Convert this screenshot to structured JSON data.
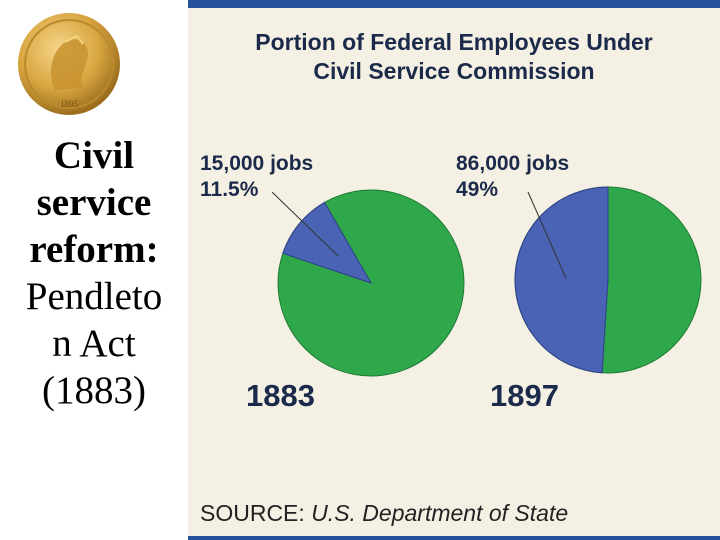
{
  "slide": {
    "heading_line1": "Civil",
    "heading_line2": "service",
    "heading_line3": "reform:",
    "body_line1": "Pendleto",
    "body_line2": "n Act",
    "body_line3": "(1883)"
  },
  "coin": {
    "icon": "gold-coin-icon",
    "year": "1895",
    "color": "#d9a640"
  },
  "chart_data": {
    "type": "pie",
    "title": "Portion of Federal Employees Under Civil Service Commission",
    "title_line1": "Portion of Federal Employees Under",
    "title_line2": "Civil Service Commission",
    "source_label": "SOURCE:",
    "source_value": "U.S. Department of State",
    "colors": {
      "covered": "#4a63b5",
      "other": "#2ea84a"
    },
    "pies": [
      {
        "year": "1883",
        "jobs_label": "15,000 jobs",
        "percent_label": "11.5%",
        "percent": 11.5
      },
      {
        "year": "1897",
        "jobs_label": "86,000 jobs",
        "percent_label": "49%",
        "percent": 49
      }
    ]
  }
}
